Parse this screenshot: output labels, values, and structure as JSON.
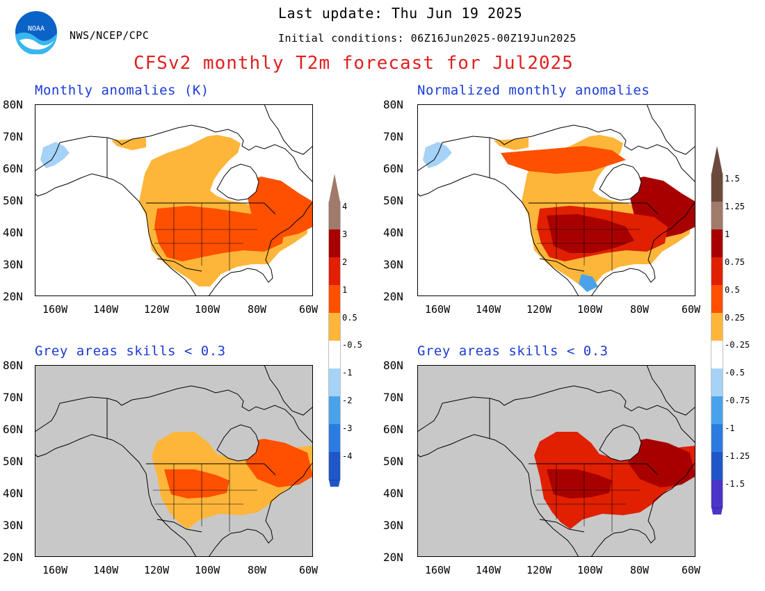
{
  "header": {
    "last_update": "Last update: Thu Jun 19 2025",
    "agency": "NWS/NCEP/CPC",
    "initial_conditions": "Initial conditions: 06Z16Jun2025-00Z19Jun2025",
    "main_title": "CFSv2 monthly T2m forecast for Jul2025",
    "logo_text": "NOAA"
  },
  "panels": [
    {
      "title": "Monthly anomalies (K)",
      "grey_mask": false,
      "scale": "absolute"
    },
    {
      "title": "Normalized monthly anomalies",
      "grey_mask": false,
      "scale": "normalized"
    },
    {
      "title": "Grey areas skills < 0.3",
      "grey_mask": true,
      "scale": "absolute"
    },
    {
      "title": "Grey areas skills < 0.3",
      "grey_mask": true,
      "scale": "normalized"
    }
  ],
  "axes": {
    "lat_labels": [
      "80N",
      "70N",
      "60N",
      "50N",
      "40N",
      "30N",
      "20N"
    ],
    "lon_labels": [
      "160W",
      "140W",
      "120W",
      "100W",
      "80W",
      "60W"
    ]
  },
  "colorbars": {
    "absolute": {
      "warm_labels": [
        "4",
        "3",
        "2",
        "1",
        "0.5"
      ],
      "cool_labels": [
        "-0.5",
        "-1",
        "-2",
        "-3",
        "-4"
      ]
    },
    "normalized": {
      "warm_labels": [
        "1.5",
        "1.25",
        "1",
        "0.75",
        "0.5",
        "0.25"
      ],
      "cool_labels": [
        "-0.25",
        "-0.5",
        "-0.75",
        "-1",
        "-1.25",
        "-1.5"
      ]
    },
    "colors": {
      "warm": [
        "#6b4a3c",
        "#a07a6a",
        "#a80000",
        "#e02000",
        "#ff5000",
        "#fdb63a"
      ],
      "cool": [
        "#a6d2f7",
        "#4aa3ea",
        "#2c7be0",
        "#1f57c8",
        "#4a35c8",
        "#2a0a9a"
      ],
      "grey_mask": "#c8c8c8",
      "title_red": "#e02020",
      "panel_title_blue": "#1a3bd6"
    }
  }
}
